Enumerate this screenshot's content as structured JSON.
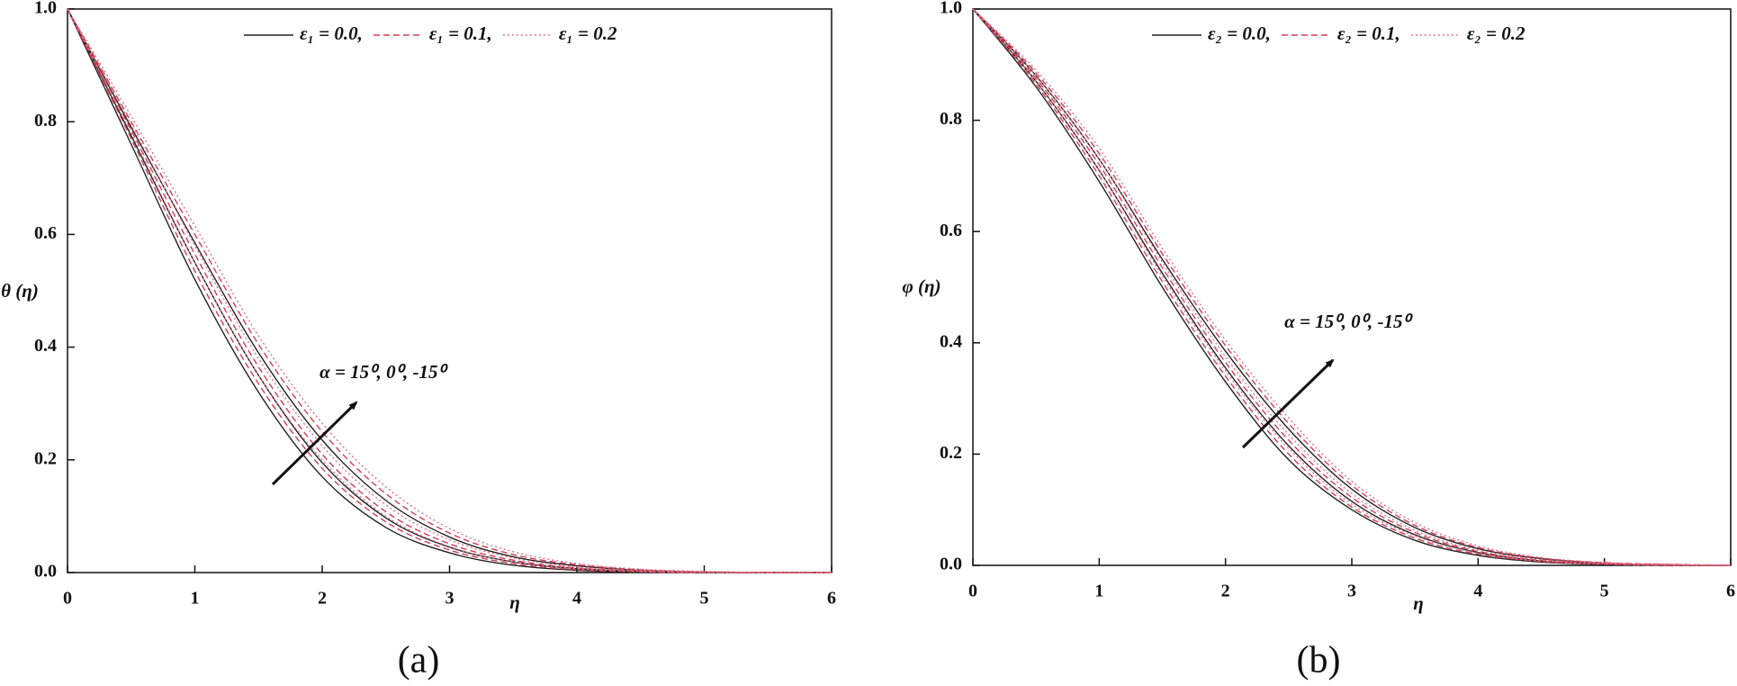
{
  "chart_data": [
    {
      "type": "line",
      "panel_label": "(a)",
      "x_label": "η",
      "y_label": "θ (η)",
      "annotation": "α = 15⁰, 0⁰, -15⁰",
      "x": [
        0,
        0.5,
        1,
        1.5,
        2,
        2.5,
        3,
        3.5,
        4,
        4.5,
        5,
        5.5,
        6
      ],
      "xlim": [
        0,
        6
      ],
      "xticks": [
        0,
        1,
        2,
        3,
        4,
        5,
        6
      ],
      "ylim": [
        0,
        1
      ],
      "yticks": [
        {
          "value": 0,
          "label": "0.0"
        },
        0.2,
        0.4,
        0.6,
        0.8,
        {
          "value": 1,
          "label": "1.0"
        }
      ],
      "legend": "top",
      "series": [
        {
          "name": "ε₁ = 0.0,",
          "color": "#222222",
          "style": "solid",
          "lines": [
            [
              1,
              0.76,
              0.52,
              0.32,
              0.17,
              0.08,
              0.035,
              0.013,
              0.004,
              0.001,
              0,
              0,
              0
            ],
            [
              1,
              0.775,
              0.55,
              0.35,
              0.195,
              0.097,
              0.045,
              0.019,
              0.007,
              0.002,
              0.0005,
              0,
              0
            ],
            [
              1,
              0.79,
              0.585,
              0.39,
              0.235,
              0.128,
              0.063,
              0.028,
              0.012,
              0.004,
              0.001,
              0,
              0
            ]
          ]
        },
        {
          "name": "ε₁ = 0.1,",
          "color": "#d23c55",
          "style": "dashed",
          "lines": [
            [
              1,
              0.77,
              0.535,
              0.335,
              0.185,
              0.09,
              0.04,
              0.016,
              0.005,
              0.0015,
              0,
              0,
              0
            ],
            [
              1,
              0.785,
              0.565,
              0.365,
              0.21,
              0.108,
              0.051,
              0.022,
              0.008,
              0.003,
              0.001,
              0,
              0
            ],
            [
              1,
              0.8,
              0.6,
              0.405,
              0.25,
              0.14,
              0.07,
              0.032,
              0.014,
              0.005,
              0.0015,
              0,
              0
            ]
          ]
        },
        {
          "name": "ε₁ = 0.2",
          "color": "#e0708a",
          "style": "dotted",
          "lines": [
            [
              1,
              0.78,
              0.55,
              0.35,
              0.2,
              0.1,
              0.046,
              0.019,
              0.007,
              0.002,
              0.0005,
              0,
              0
            ],
            [
              1,
              0.795,
              0.58,
              0.38,
              0.225,
              0.12,
              0.058,
              0.026,
              0.01,
              0.004,
              0.001,
              0,
              0
            ],
            [
              1,
              0.81,
              0.615,
              0.42,
              0.265,
              0.152,
              0.078,
              0.037,
              0.016,
              0.006,
              0.002,
              0,
              0
            ]
          ]
        }
      ]
    },
    {
      "type": "line",
      "panel_label": "(b)",
      "x_label": "η",
      "y_label": "φ (η)",
      "annotation": "α = 15⁰, 0⁰, -15⁰",
      "x": [
        0,
        0.5,
        1,
        1.5,
        2,
        2.5,
        3,
        3.5,
        4,
        4.5,
        5,
        5.5,
        6
      ],
      "xlim": [
        0,
        6
      ],
      "xticks": [
        0,
        1,
        2,
        3,
        4,
        5,
        6
      ],
      "ylim": [
        0,
        1
      ],
      "yticks": [
        {
          "value": 0,
          "label": "0.0"
        },
        0.2,
        0.4,
        0.6,
        0.8,
        {
          "value": 1,
          "label": "1.0"
        }
      ],
      "legend": "top",
      "series": [
        {
          "name": "ε₂ = 0.0,",
          "color": "#222222",
          "style": "solid",
          "lines": [
            [
              1,
              0.86,
              0.69,
              0.5,
              0.33,
              0.19,
              0.1,
              0.045,
              0.018,
              0.006,
              0.002,
              0,
              0
            ],
            [
              1,
              0.87,
              0.71,
              0.525,
              0.355,
              0.215,
              0.115,
              0.055,
              0.023,
              0.008,
              0.003,
              0.001,
              0
            ],
            [
              1,
              0.88,
              0.73,
              0.55,
              0.385,
              0.245,
              0.137,
              0.068,
              0.03,
              0.012,
              0.004,
              0.001,
              0
            ]
          ]
        },
        {
          "name": "ε₂ = 0.1,",
          "color": "#d23c55",
          "style": "dashed",
          "lines": [
            [
              1,
              0.865,
              0.7,
              0.51,
              0.34,
              0.2,
              0.105,
              0.049,
              0.02,
              0.007,
              0.002,
              0,
              0
            ],
            [
              1,
              0.875,
              0.72,
              0.535,
              0.365,
              0.225,
              0.122,
              0.059,
              0.025,
              0.009,
              0.003,
              0.001,
              0
            ],
            [
              1,
              0.885,
              0.74,
              0.56,
              0.395,
              0.255,
              0.144,
              0.072,
              0.032,
              0.013,
              0.005,
              0.002,
              0
            ]
          ]
        },
        {
          "name": "ε₂ = 0.2",
          "color": "#e0708a",
          "style": "dotted",
          "lines": [
            [
              1,
              0.87,
              0.71,
              0.52,
              0.35,
              0.21,
              0.11,
              0.053,
              0.022,
              0.008,
              0.003,
              0.001,
              0
            ],
            [
              1,
              0.88,
              0.73,
              0.545,
              0.375,
              0.235,
              0.129,
              0.063,
              0.027,
              0.01,
              0.004,
              0.001,
              0
            ],
            [
              1,
              0.89,
              0.75,
              0.57,
              0.405,
              0.265,
              0.151,
              0.077,
              0.035,
              0.014,
              0.005,
              0.002,
              0
            ]
          ]
        }
      ]
    }
  ]
}
